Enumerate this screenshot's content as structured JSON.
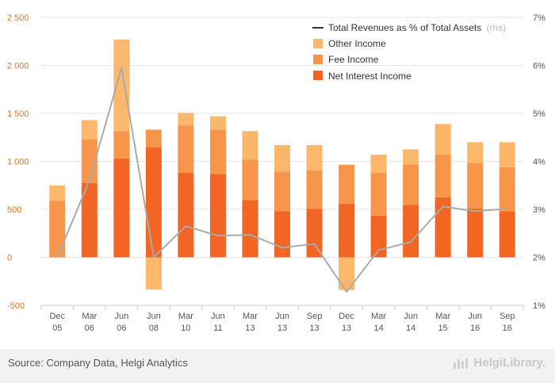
{
  "chart_data": {
    "type": "bar",
    "stacked": true,
    "categories": [
      "Dec 05",
      "Mar 06",
      "Jun 06",
      "Jun 08",
      "Mar 10",
      "Jun 11",
      "Mar 13",
      "Jun 13",
      "Sep 13",
      "Dec 13",
      "Mar 14",
      "Jun 14",
      "Mar 15",
      "Jun 16",
      "Sep 16"
    ],
    "series": [
      {
        "name": "Net Interest Income",
        "color": "#f26522",
        "values": [
          0,
          775,
          1030,
          1145,
          880,
          870,
          595,
          480,
          505,
          560,
          435,
          545,
          625,
          510,
          480
        ]
      },
      {
        "name": "Fee Income",
        "color": "#f7964a",
        "values": [
          590,
          455,
          285,
          185,
          495,
          460,
          425,
          415,
          400,
          405,
          445,
          425,
          445,
          475,
          460
        ]
      },
      {
        "name": "Other Income",
        "color": "#fbb76b",
        "values": [
          160,
          200,
          955,
          -335,
          130,
          140,
          295,
          275,
          265,
          -340,
          190,
          155,
          320,
          215,
          260
        ]
      },
      {
        "name": "Total Revenues as % of Total Assets",
        "unit": "(rhs)",
        "type": "line",
        "color": "#aaaaaa",
        "values": [
          2.0,
          3.6,
          5.95,
          2.0,
          2.65,
          2.45,
          2.47,
          2.2,
          2.28,
          1.28,
          2.15,
          2.32,
          3.06,
          2.96,
          3.01
        ]
      }
    ],
    "y_left": {
      "min": -500,
      "max": 2500,
      "ticks": [
        -500,
        0,
        500,
        1000,
        1500,
        2000,
        2500
      ],
      "tick_labels": [
        "-500",
        "0",
        "500",
        "1 000",
        "1 500",
        "2 000",
        "2 500"
      ]
    },
    "y_right": {
      "min": 1,
      "max": 7,
      "ticks": [
        1,
        2,
        3,
        4,
        5,
        6,
        7
      ],
      "tick_labels": [
        "1%",
        "2%",
        "3%",
        "4%",
        "5%",
        "6%",
        "7%"
      ]
    },
    "grid": true,
    "legend_position": "top-right"
  },
  "footer": {
    "source": "Source: Company Data, Helgi Analytics",
    "brand": "HelgiLibrary."
  }
}
